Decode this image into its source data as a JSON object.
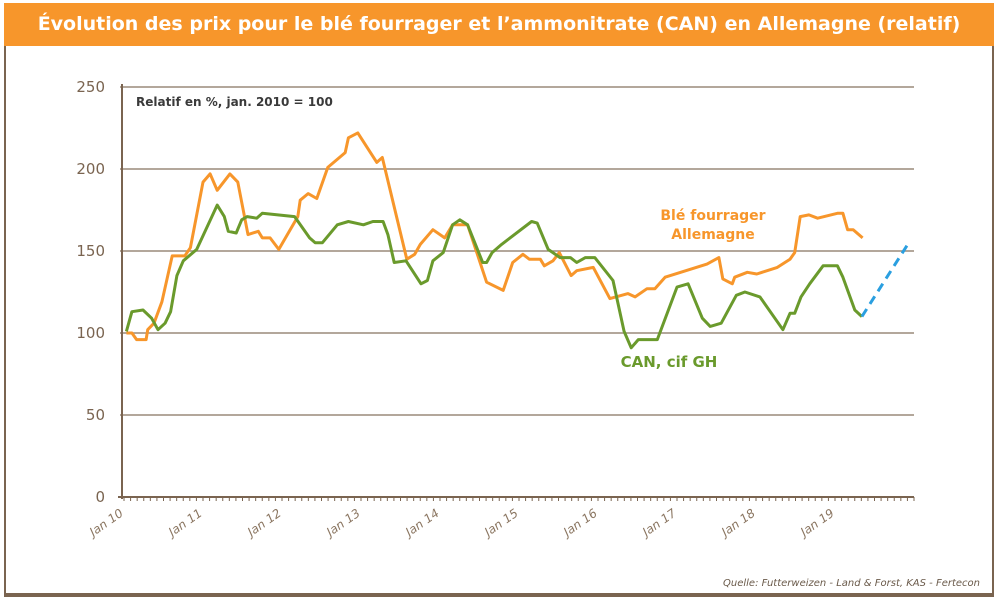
{
  "title": "Évolution des prix pour le blé fourrager et l’ammonitrate (CAN) en Allemagne (relatif)",
  "source": "Quelle: Futterweizen - Land & Forst, KAS - Fertecon",
  "chart_data": {
    "type": "line",
    "title": "Évolution des prix pour le blé fourrager et l’ammonitrate (CAN) en Allemagne (relatif)",
    "annotation": "Relatif en %, jan. 2010 = 100",
    "xlabel": "",
    "ylabel": "",
    "xlim": [
      2010,
      2020
    ],
    "ylim": [
      0,
      250
    ],
    "yticks": [
      0,
      50,
      100,
      150,
      200,
      250
    ],
    "xticks": [
      {
        "value": 2010,
        "label": "Jan 10"
      },
      {
        "value": 2011,
        "label": "Jan 11"
      },
      {
        "value": 2012,
        "label": "Jan 12"
      },
      {
        "value": 2013,
        "label": "Jan 13"
      },
      {
        "value": 2014,
        "label": "Jan 14"
      },
      {
        "value": 2015,
        "label": "Jan 15"
      },
      {
        "value": 2016,
        "label": "Jan 16"
      },
      {
        "value": 2017,
        "label": "Jan 17"
      },
      {
        "value": 2018,
        "label": "Jan 18"
      },
      {
        "value": 2019,
        "label": "Jan 19"
      }
    ],
    "grid": "horizontal",
    "series": [
      {
        "name": "Blé fourrager Allemagne",
        "label_lines": [
          "Blé fourrager",
          "Allemagne"
        ],
        "color": "#f7962b",
        "points": [
          [
            2010.03,
            100
          ],
          [
            2010.1,
            100
          ],
          [
            2010.16,
            96
          ],
          [
            2010.28,
            96
          ],
          [
            2010.3,
            102
          ],
          [
            2010.38,
            106
          ],
          [
            2010.48,
            119
          ],
          [
            2010.61,
            147
          ],
          [
            2010.77,
            147
          ],
          [
            2010.84,
            152
          ],
          [
            2011.0,
            192
          ],
          [
            2011.09,
            197
          ],
          [
            2011.18,
            187
          ],
          [
            2011.34,
            197
          ],
          [
            2011.44,
            192
          ],
          [
            2011.57,
            160
          ],
          [
            2011.7,
            162
          ],
          [
            2011.75,
            158
          ],
          [
            2011.85,
            158
          ],
          [
            2011.96,
            151
          ],
          [
            2012.2,
            171
          ],
          [
            2012.23,
            181
          ],
          [
            2012.33,
            185
          ],
          [
            2012.44,
            182
          ],
          [
            2012.58,
            201
          ],
          [
            2012.8,
            210
          ],
          [
            2012.84,
            219
          ],
          [
            2012.96,
            222
          ],
          [
            2013.2,
            204
          ],
          [
            2013.27,
            207
          ],
          [
            2013.58,
            145
          ],
          [
            2013.68,
            148
          ],
          [
            2013.75,
            154
          ],
          [
            2013.91,
            163
          ],
          [
            2014.06,
            158
          ],
          [
            2014.16,
            166
          ],
          [
            2014.35,
            166
          ],
          [
            2014.59,
            131
          ],
          [
            2014.8,
            126
          ],
          [
            2014.92,
            143
          ],
          [
            2015.05,
            148
          ],
          [
            2015.13,
            145
          ],
          [
            2015.27,
            145
          ],
          [
            2015.32,
            141
          ],
          [
            2015.43,
            144
          ],
          [
            2015.51,
            149
          ],
          [
            2015.66,
            135
          ],
          [
            2015.73,
            138
          ],
          [
            2015.94,
            140
          ],
          [
            2016.15,
            121
          ],
          [
            2016.38,
            124
          ],
          [
            2016.47,
            122
          ],
          [
            2016.62,
            127
          ],
          [
            2016.72,
            127
          ],
          [
            2016.85,
            134
          ],
          [
            2017.38,
            142
          ],
          [
            2017.53,
            146
          ],
          [
            2017.58,
            133
          ],
          [
            2017.7,
            130
          ],
          [
            2017.73,
            134
          ],
          [
            2017.89,
            137
          ],
          [
            2018.01,
            136
          ],
          [
            2018.27,
            140
          ],
          [
            2018.43,
            145
          ],
          [
            2018.49,
            149
          ],
          [
            2018.56,
            171
          ],
          [
            2018.67,
            172
          ],
          [
            2018.78,
            170
          ],
          [
            2019.03,
            173
          ],
          [
            2019.1,
            173
          ],
          [
            2019.16,
            163
          ],
          [
            2019.23,
            163
          ],
          [
            2019.35,
            158
          ]
        ]
      },
      {
        "name": "CAN, cif GH",
        "label_lines": [
          "CAN, cif GH"
        ],
        "color": "#6a9a2c",
        "points": [
          [
            2010.03,
            101
          ],
          [
            2010.1,
            113
          ],
          [
            2010.24,
            114
          ],
          [
            2010.35,
            109
          ],
          [
            2010.43,
            102
          ],
          [
            2010.52,
            106
          ],
          [
            2010.59,
            113
          ],
          [
            2010.67,
            135
          ],
          [
            2010.75,
            144
          ],
          [
            2010.92,
            151
          ],
          [
            2011.18,
            178
          ],
          [
            2011.27,
            171
          ],
          [
            2011.32,
            162
          ],
          [
            2011.42,
            161
          ],
          [
            2011.49,
            169
          ],
          [
            2011.56,
            171
          ],
          [
            2011.68,
            170
          ],
          [
            2011.75,
            173
          ],
          [
            2012.16,
            171
          ],
          [
            2012.35,
            158
          ],
          [
            2012.42,
            155
          ],
          [
            2012.51,
            155
          ],
          [
            2012.7,
            166
          ],
          [
            2012.84,
            168
          ],
          [
            2013.03,
            166
          ],
          [
            2013.15,
            168
          ],
          [
            2013.28,
            168
          ],
          [
            2013.34,
            160
          ],
          [
            2013.42,
            143
          ],
          [
            2013.57,
            144
          ],
          [
            2013.76,
            130
          ],
          [
            2013.84,
            132
          ],
          [
            2013.91,
            144
          ],
          [
            2014.04,
            149
          ],
          [
            2014.16,
            166
          ],
          [
            2014.25,
            169
          ],
          [
            2014.35,
            166
          ],
          [
            2014.54,
            143
          ],
          [
            2014.59,
            143
          ],
          [
            2014.66,
            149
          ],
          [
            2014.78,
            154
          ],
          [
            2015.16,
            168
          ],
          [
            2015.23,
            167
          ],
          [
            2015.37,
            151
          ],
          [
            2015.52,
            146
          ],
          [
            2015.65,
            146
          ],
          [
            2015.73,
            143
          ],
          [
            2015.84,
            146
          ],
          [
            2015.96,
            146
          ],
          [
            2016.19,
            132
          ],
          [
            2016.33,
            101
          ],
          [
            2016.42,
            91
          ],
          [
            2016.51,
            96
          ],
          [
            2016.75,
            96
          ],
          [
            2017.0,
            128
          ],
          [
            2017.14,
            130
          ],
          [
            2017.32,
            109
          ],
          [
            2017.42,
            104
          ],
          [
            2017.56,
            106
          ],
          [
            2017.75,
            123
          ],
          [
            2017.86,
            125
          ],
          [
            2018.05,
            122
          ],
          [
            2018.34,
            102
          ],
          [
            2018.43,
            112
          ],
          [
            2018.49,
            112
          ],
          [
            2018.57,
            122
          ],
          [
            2018.68,
            130
          ],
          [
            2018.85,
            141
          ],
          [
            2019.03,
            141
          ],
          [
            2019.1,
            134
          ],
          [
            2019.25,
            114
          ],
          [
            2019.34,
            110
          ]
        ]
      },
      {
        "style": "dashed",
        "color": "#2a9fe0",
        "points": [
          [
            2019.34,
            110
          ],
          [
            2019.92,
            154
          ]
        ]
      }
    ]
  }
}
